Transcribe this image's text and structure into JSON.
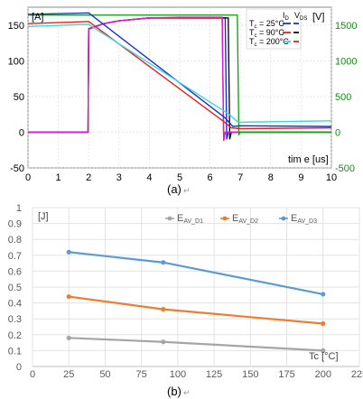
{
  "chart_data": [
    {
      "type": "line",
      "caption": "(a)",
      "ylabel_left": "[A]",
      "ylabel_right": "[V]",
      "xlabel": "tim e [us]",
      "xlim": [
        0,
        10
      ],
      "ylim_left": [
        -50,
        175
      ],
      "ylim_right": [
        -500,
        1750
      ],
      "x_ticks": [
        "0",
        "1",
        "2",
        "3",
        "4",
        "5",
        "6",
        "7",
        "8",
        "9",
        "10"
      ],
      "y_ticks_left": [
        "-50",
        "0",
        "50",
        "100",
        "150"
      ],
      "y_ticks_right": [
        "-500",
        "0",
        "500",
        "1000",
        "1500"
      ],
      "legend_header": [
        "I",
        "V"
      ],
      "legend_header_sub": [
        "D",
        "DS"
      ],
      "legend": [
        {
          "label": "T = 25°C",
          "sub": "c",
          "current_color": "#1a2fd8",
          "voltage_color": "#1a2fd8"
        },
        {
          "label": "T = 90°C",
          "sub": "c",
          "current_color": "#e3231e",
          "voltage_color": "#111111"
        },
        {
          "label": "T = 200°C",
          "sub": "c",
          "current_color": "#3ed6e0",
          "voltage_color": "#e3231e"
        }
      ],
      "current_series": [
        {
          "name": "T = 25°C",
          "color": "#1a2fd8",
          "x": [
            0,
            2.0,
            6.5,
            6.75,
            7,
            10
          ],
          "y": [
            165,
            167,
            20,
            8,
            9,
            8
          ]
        },
        {
          "name": "T = 90°C",
          "color": "#e3231e",
          "x": [
            0,
            2.0,
            6.45,
            6.7,
            7,
            10
          ],
          "y": [
            152,
            155,
            15,
            6,
            5,
            6
          ]
        },
        {
          "name": "T = 200°C",
          "color": "#3ed6e0",
          "x": [
            0,
            2.0,
            6.6,
            6.9,
            7,
            10
          ],
          "y": [
            148,
            151,
            26,
            15,
            14,
            16
          ]
        }
      ],
      "voltage_series": [
        {
          "name": "T = 25°C",
          "color": "#1a2fd8",
          "x": [
            0,
            1.98,
            2.0,
            2.5,
            3,
            4,
            5,
            6.4,
            6.5,
            6.55,
            6.6,
            10
          ],
          "y": [
            0,
            0,
            1450,
            1520,
            1560,
            1600,
            1600,
            1600,
            1600,
            -100,
            0,
            0
          ]
        },
        {
          "name": "T = 90°C",
          "color": "#111111",
          "x": [
            0,
            1.98,
            2.0,
            2.5,
            3,
            4,
            5,
            6.5,
            6.6,
            6.65,
            6.7,
            10
          ],
          "y": [
            0,
            0,
            1450,
            1520,
            1560,
            1600,
            1600,
            1600,
            1600,
            -100,
            0,
            0
          ]
        },
        {
          "name": "T = 200°C",
          "color": "#e3231e",
          "x": [
            0,
            1.98,
            2.0,
            2.5,
            3,
            4,
            5,
            6.3,
            6.4,
            6.45,
            6.5,
            10
          ],
          "y": [
            0,
            0,
            1450,
            1520,
            1560,
            1600,
            1600,
            1600,
            1600,
            -100,
            0,
            0
          ]
        },
        {
          "name": "magenta",
          "color": "#d21fd2",
          "x": [
            0,
            1.98,
            2.0,
            2.5,
            3,
            4,
            5,
            6.35,
            6.4,
            6.45,
            6.5,
            10
          ],
          "y": [
            0,
            0,
            1440,
            1520,
            1560,
            1600,
            1610,
            1610,
            1610,
            -120,
            0,
            0
          ]
        },
        {
          "name": "green",
          "color": "#1aa31a",
          "x": [
            0,
            6.3,
            6.9,
            6.95,
            7.0,
            10
          ],
          "y": [
            1640,
            1640,
            1640,
            -30,
            0,
            0
          ]
        }
      ]
    },
    {
      "type": "line",
      "caption": "(b)",
      "ylabel": "[J]",
      "xlabel": "Tc [°C]",
      "xlim": [
        0,
        225
      ],
      "ylim": [
        0,
        1
      ],
      "x_ticks": [
        "0",
        "25",
        "50",
        "75",
        "100",
        "125",
        "150",
        "175",
        "200",
        "225"
      ],
      "y_ticks": [
        "0",
        "0.1",
        "0.2",
        "0.3",
        "0.4",
        "0.5",
        "0.6",
        "0.7",
        "0.8",
        "0.9",
        "1"
      ],
      "x": [
        25,
        90,
        200
      ],
      "series": [
        {
          "name": "E",
          "sub": "AV_D1",
          "color": "#a5a5a5",
          "values": [
            0.18,
            0.155,
            0.1
          ]
        },
        {
          "name": "E",
          "sub": "AV_D2",
          "color": "#ed7d31",
          "values": [
            0.44,
            0.36,
            0.27
          ]
        },
        {
          "name": "E",
          "sub": "AV_D3",
          "color": "#5b9bd5",
          "values": [
            0.72,
            0.655,
            0.455
          ]
        }
      ]
    }
  ]
}
